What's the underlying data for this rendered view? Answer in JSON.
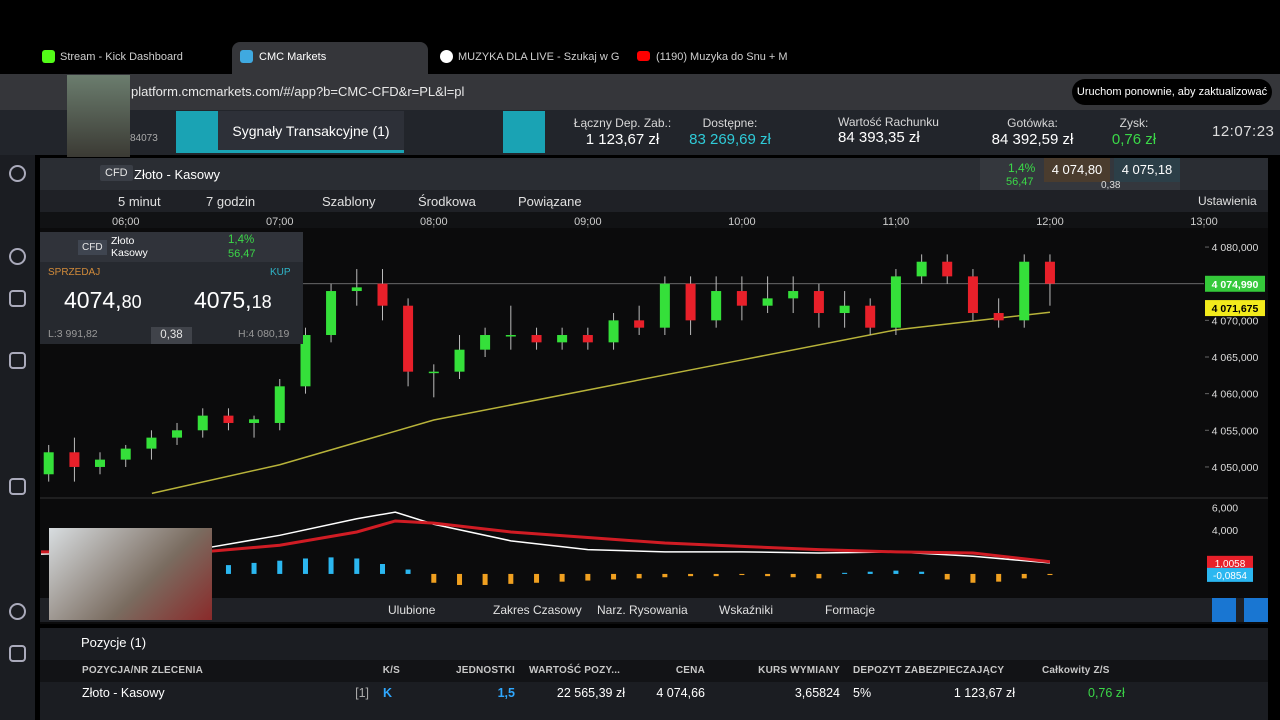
{
  "browser": {
    "tabs": [
      "Stream - Kick Dashboard",
      "CMC Markets",
      "MUZYKA DLA LIVE - Szukaj w G",
      "(1190) Muzyka do Snu + M"
    ],
    "url": "platform.cmcmarkets.com/#/app?b=CMC-CFD&r=PL&l=pl",
    "update_button": "Uruchom ponownie, aby zaktualizować"
  },
  "header": {
    "account_id": "84073",
    "signals": "Sygnały Transakcyjne (1)",
    "stats": [
      {
        "label": "Łączny Dep. Zab.:",
        "value": "1 123,67 zł"
      },
      {
        "label": "Dostępne:",
        "value": "83 269,69 zł"
      },
      {
        "label": "Wartość Rachunku",
        "value": "84 393,35 zł"
      },
      {
        "label": "Gotówka:",
        "value": "84 392,59 zł"
      },
      {
        "label": "Zysk:",
        "value": "0,76 zł"
      }
    ],
    "clock": "12:07:23"
  },
  "instrument": {
    "badge": "CFD",
    "name": "Złoto - Kasowy",
    "change_pct": "1,4%",
    "change": "56,47",
    "sell": "4 074,80",
    "buy": "4 075,18",
    "spread": "0,38"
  },
  "toolbar": [
    "5 minut",
    "7 godzin",
    "Szablony",
    "Środkowa",
    "Powiązane"
  ],
  "settings": "Ustawienia",
  "ticket": {
    "badge": "CFD",
    "name": [
      "Złoto",
      "Kasowy"
    ],
    "change_pct": "1,4%",
    "change": "56,47",
    "sell_label": "SPRZEDAJ",
    "buy_label": "KUP",
    "sell_big": "4074,",
    "sell_small": "80",
    "buy_big": "4075,",
    "buy_small": "18",
    "low": "L:3 991,82",
    "spread": "0,38",
    "high": "H:4 080,19"
  },
  "chart_data": [
    {
      "type": "candlestick",
      "xlim": [
        5.45,
        13.0
      ],
      "ylim": [
        4045.9,
        4082.6
      ],
      "xticks": [
        {
          "value": 6,
          "label": "06:00"
        },
        {
          "value": 7,
          "label": "07:00"
        },
        {
          "value": 8,
          "label": "08:00"
        },
        {
          "value": 9,
          "label": "09:00"
        },
        {
          "value": 10,
          "label": "10:00"
        },
        {
          "value": 11,
          "label": "11:00"
        },
        {
          "value": 12,
          "label": "12:00"
        },
        {
          "value": 13,
          "label": "13:00"
        }
      ],
      "yticks": [
        {
          "value": 4050,
          "label": "4 050,000"
        },
        {
          "value": 4055,
          "label": "4 055,000"
        },
        {
          "value": 4060,
          "label": "4 060,000"
        },
        {
          "value": 4065,
          "label": "4 065,000"
        },
        {
          "value": 4070,
          "label": "4 070,000"
        },
        {
          "value": 4075,
          "label": "4 075,000"
        },
        {
          "value": 4080,
          "label": "4 080,000"
        }
      ],
      "x": [
        5.5,
        5.667,
        5.833,
        6.0,
        6.167,
        6.333,
        6.5,
        6.667,
        6.833,
        7.0,
        7.167,
        7.333,
        7.5,
        7.667,
        7.833,
        8.0,
        8.167,
        8.333,
        8.5,
        8.667,
        8.833,
        9.0,
        9.167,
        9.333,
        9.5,
        9.667,
        9.833,
        10.0,
        10.167,
        10.333,
        10.5,
        10.667,
        10.833,
        11.0,
        11.167,
        11.333,
        11.5,
        11.667,
        11.833,
        12.0
      ],
      "open": [
        4049,
        4052,
        4050,
        4051,
        4052.5,
        4054,
        4055,
        4057,
        4056,
        4056,
        4061,
        4068,
        4074,
        4075,
        4072,
        4063,
        4063,
        4066,
        4068,
        4068,
        4067,
        4068,
        4067,
        4070,
        4069,
        4075,
        4070,
        4074,
        4072,
        4073,
        4074,
        4071,
        4072,
        4069,
        4076,
        4078,
        4076,
        4071,
        4070,
        4078
      ],
      "high": [
        4053,
        4054,
        4052,
        4053,
        4055,
        4056,
        4058,
        4058,
        4057,
        4062,
        4069,
        4075,
        4077,
        4077,
        4073,
        4064,
        4068,
        4069,
        4072,
        4069,
        4069,
        4069,
        4071,
        4072,
        4076,
        4076,
        4076,
        4076,
        4076,
        4076,
        4075,
        4074,
        4073,
        4077,
        4079,
        4079,
        4077,
        4073,
        4079,
        4079
      ],
      "low": [
        4048,
        4048,
        4049,
        4050,
        4051,
        4053,
        4054,
        4055,
        4054,
        4055,
        4060,
        4067,
        4072,
        4070,
        4061,
        4059.5,
        4062,
        4065,
        4066,
        4066,
        4066,
        4066,
        4066,
        4068,
        4068,
        4068,
        4069,
        4070,
        4071,
        4071,
        4069,
        4069,
        4068,
        4068,
        4075,
        4075,
        4070,
        4069,
        4069,
        4072
      ],
      "close": [
        4052,
        4050,
        4051,
        4052.5,
        4054,
        4055,
        4057,
        4056,
        4056.5,
        4061,
        4068,
        4074,
        4074.5,
        4072,
        4063,
        4063,
        4066,
        4068,
        4068,
        4067,
        4068,
        4067,
        4070,
        4069,
        4075,
        4070,
        4074,
        4072,
        4073,
        4074,
        4071,
        4072,
        4069,
        4076,
        4078,
        4076,
        4071,
        4070,
        4078,
        4075
      ],
      "up_color": "#35e03a",
      "down_color": "#e8202a",
      "ma": {
        "x": [
          6.17,
          7,
          8,
          9,
          10,
          11,
          12
        ],
        "values": [
          4046.4,
          4050.3,
          4056.4,
          4060.5,
          4064.6,
          4068.7,
          4071.1
        ],
        "color": "#b8b33a"
      },
      "price_tag": {
        "value": 4074.99,
        "label": "4 074,990",
        "color": "#35c93a"
      },
      "ma_tag": {
        "value": 4071.675,
        "label": "4 071,675",
        "color": "#f2ea1c"
      }
    },
    {
      "type": "indicator",
      "xlim": [
        5.45,
        13.0
      ],
      "ylim": [
        -2,
        6.7
      ],
      "yticks": [
        {
          "value": 6,
          "label": "6,000"
        },
        {
          "value": 4,
          "label": "4,000"
        }
      ],
      "series": [
        {
          "color": "#ffffff",
          "x": [
            5.45,
            6,
            6.5,
            7,
            7.5,
            7.75,
            8,
            8.5,
            9,
            9.5,
            10,
            10.5,
            11,
            11.5,
            12
          ],
          "values": [
            1.8,
            2.0,
            2.3,
            3.5,
            5.0,
            5.6,
            4.5,
            3.0,
            2.2,
            2.0,
            2.0,
            1.9,
            2.0,
            1.6,
            1.0
          ]
        },
        {
          "color": "#d01c24",
          "x": [
            5.45,
            6,
            6.5,
            7,
            7.5,
            7.75,
            8,
            8.5,
            9,
            9.5,
            10,
            10.5,
            11,
            11.5,
            12
          ],
          "values": [
            2.0,
            2.0,
            2.0,
            2.6,
            3.8,
            4.8,
            4.6,
            3.8,
            3.3,
            2.8,
            2.5,
            2.2,
            2.0,
            1.9,
            1.1
          ]
        }
      ],
      "histogram": {
        "up_color": "#2bb7f0",
        "down_color": "#f0a020",
        "x": [
          6.0,
          6.167,
          6.333,
          6.5,
          6.667,
          6.833,
          7.0,
          7.167,
          7.333,
          7.5,
          7.667,
          7.833,
          8.0,
          8.167,
          8.333,
          8.5,
          8.667,
          8.833,
          9.0,
          9.167,
          9.333,
          9.5,
          9.667,
          9.833,
          10.0,
          10.167,
          10.333,
          10.5,
          10.667,
          10.833,
          11.0,
          11.167,
          11.333,
          11.5,
          11.667,
          11.833,
          12.0
        ],
        "values": [
          0.3,
          0.4,
          0.5,
          0.6,
          0.8,
          1.0,
          1.2,
          1.4,
          1.5,
          1.4,
          0.9,
          0.4,
          -0.8,
          -1.0,
          -1.0,
          -0.9,
          -0.8,
          -0.7,
          -0.6,
          -0.5,
          -0.4,
          -0.3,
          -0.2,
          -0.2,
          -0.1,
          -0.2,
          -0.3,
          -0.4,
          0.1,
          0.2,
          0.3,
          0.2,
          -0.5,
          -0.8,
          -0.7,
          -0.4,
          -0.1
        ]
      },
      "tags": [
        {
          "value": 1.0058,
          "label": "1,0058",
          "color": "#e8202a"
        },
        {
          "value": -0.0854,
          "label": "-0,0854",
          "color": "#2bb7f0"
        }
      ]
    }
  ],
  "chart_toolbar": [
    "Ulubione",
    "Zakres Czasowy",
    "Narz. Rysowania",
    "Wskaźniki",
    "Formacje"
  ],
  "positions": {
    "title": "Pozycje (1)",
    "columns": [
      "POZYCJA/NR ZLECENIA",
      "K/S",
      "JEDNOSTKI",
      "WARTOŚĆ POZY...",
      "CENA",
      "KURS WYMIANY",
      "DEPOZYT ZABEZPIECZAJĄCY",
      "Całkowity Z/S"
    ],
    "rows": [
      [
        "Złoto - Kasowy",
        "[1]",
        "K",
        "1,5",
        "22 565,39 zł",
        "4 074,66",
        "3,65824",
        "5%",
        "1 123,67 zł",
        "0,76 zł"
      ]
    ]
  }
}
